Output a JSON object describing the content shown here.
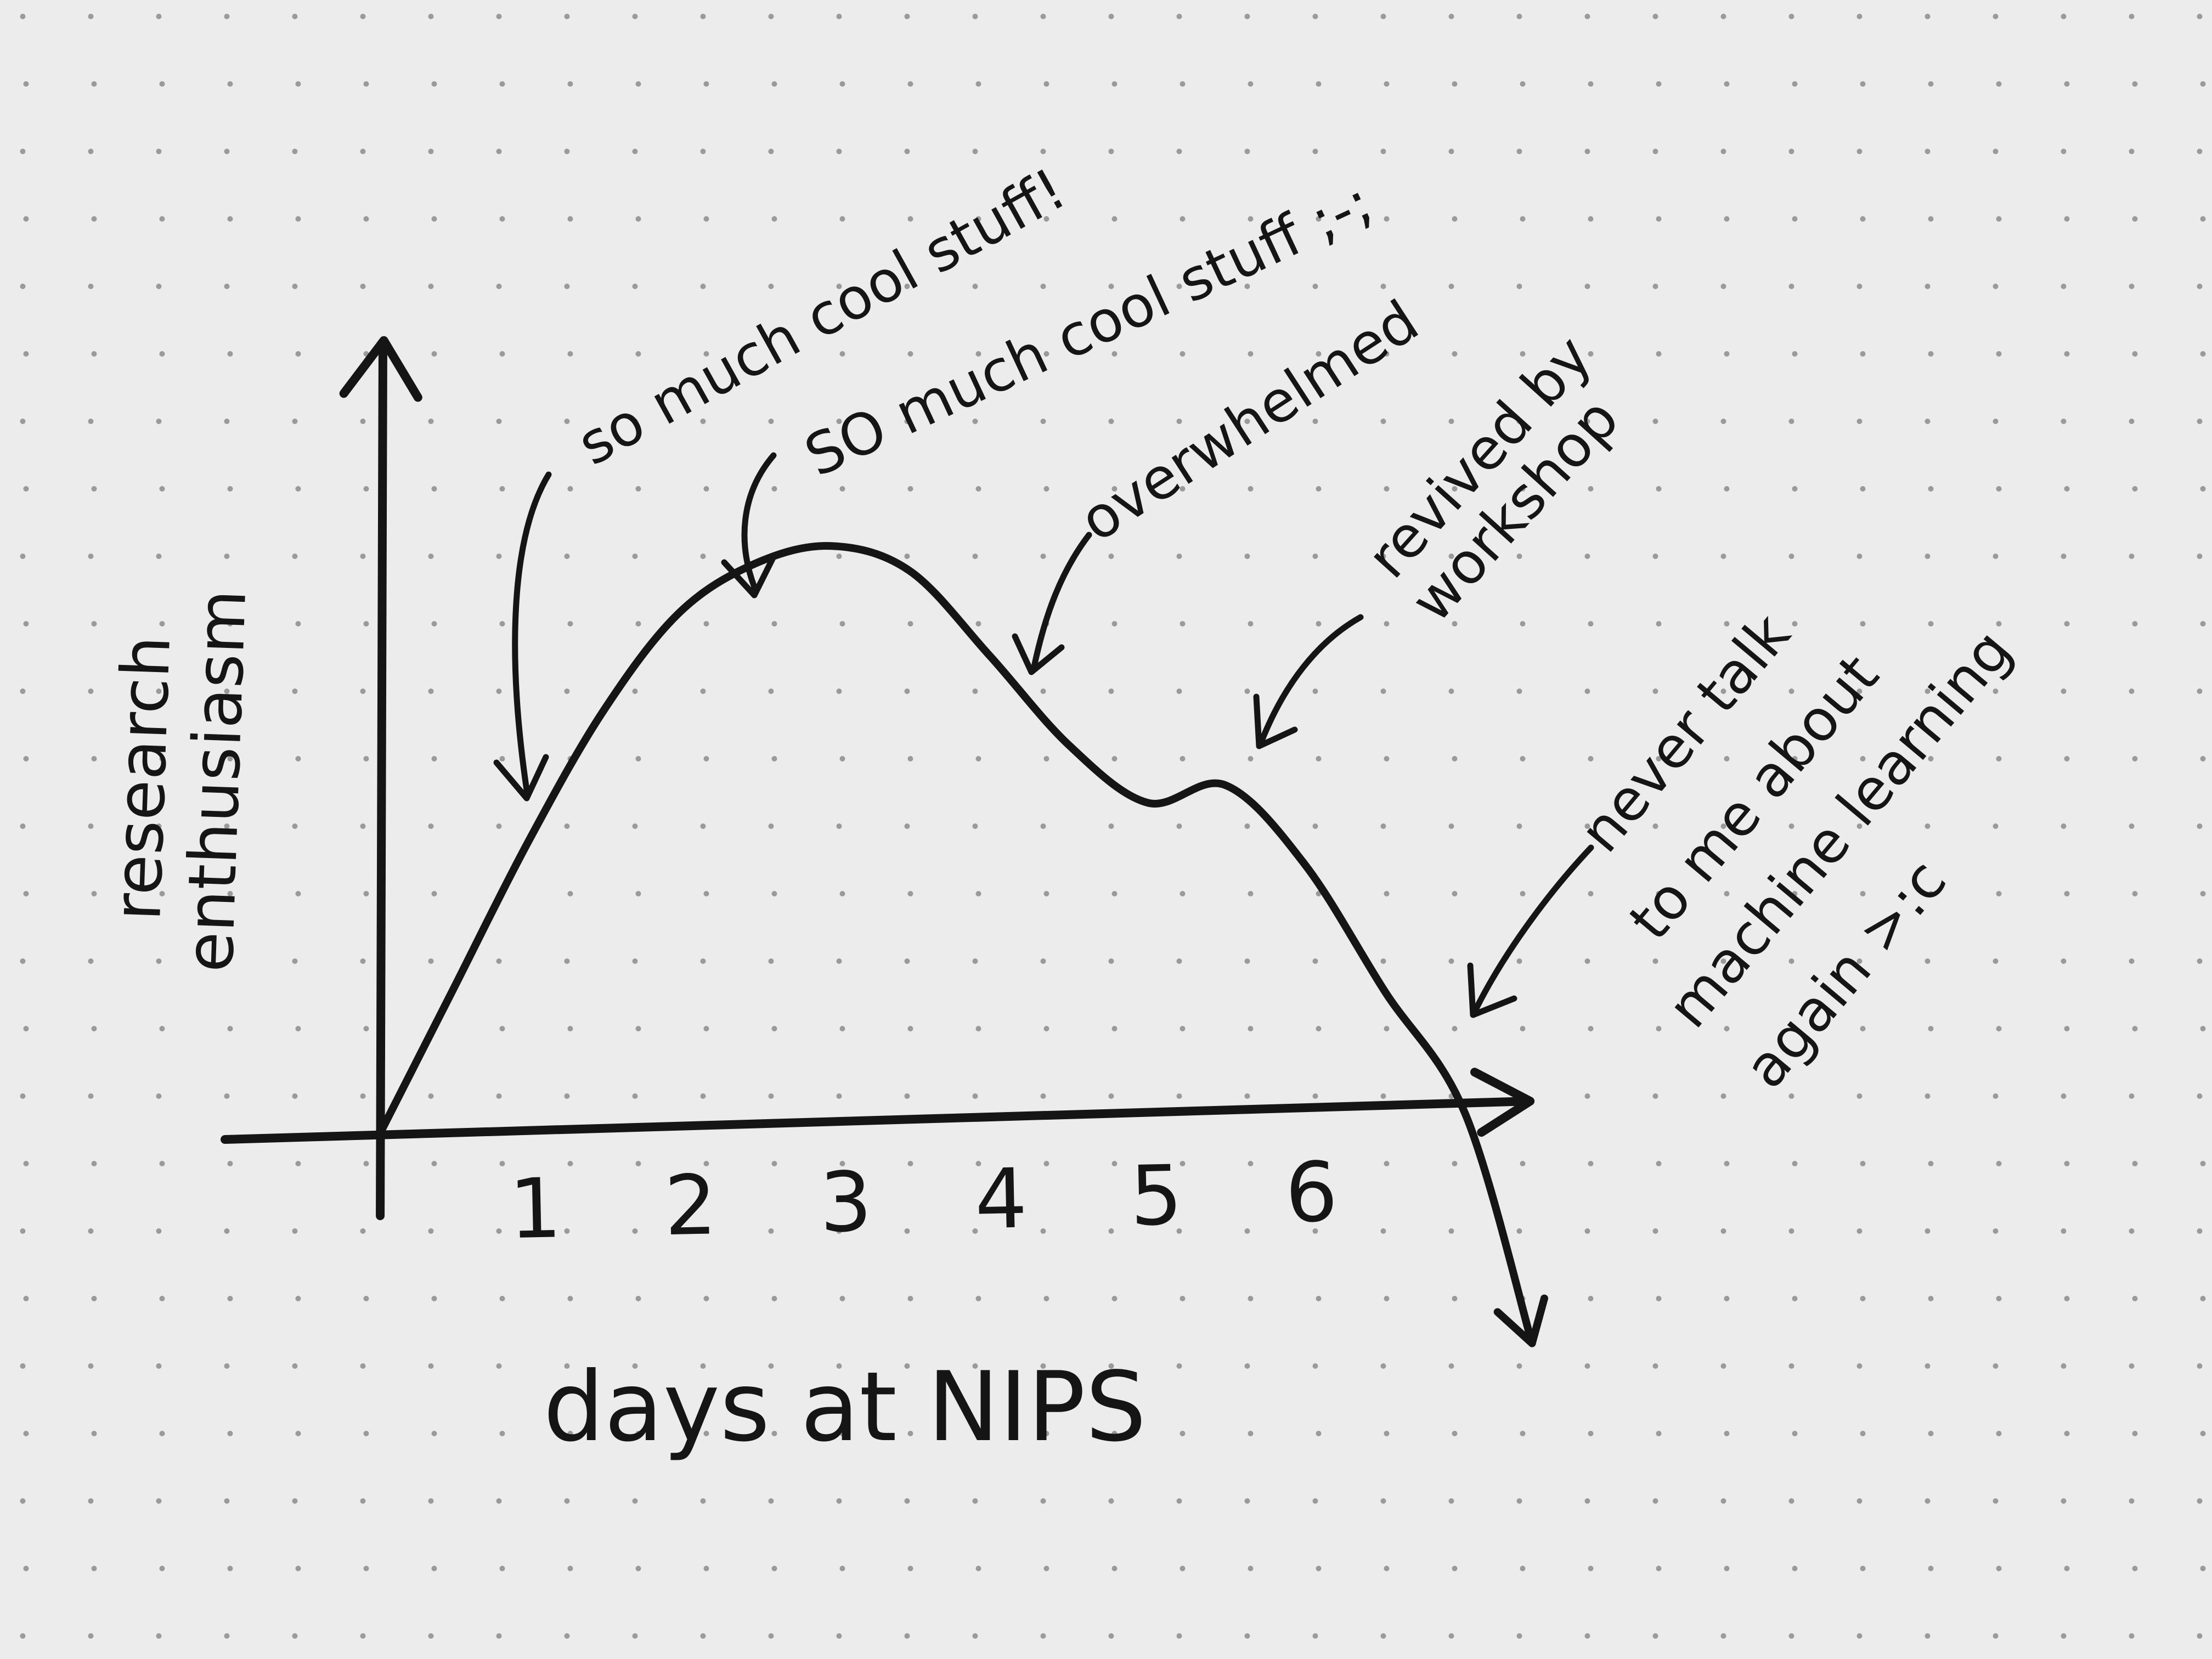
{
  "chart_data": {
    "type": "line",
    "title": "",
    "xlabel": "days at NIPS",
    "ylabel": [
      "research",
      "enthusiasm"
    ],
    "x_ticks": [
      "1",
      "2",
      "3",
      "4",
      "5",
      "6"
    ],
    "x": [
      0,
      0.5,
      1,
      1.5,
      2,
      2.5,
      3,
      3.5,
      4,
      4.5,
      5,
      5.5,
      6,
      6.5,
      7,
      7.4
    ],
    "values": [
      0,
      2.7,
      5.4,
      7.8,
      9.6,
      10.5,
      10.8,
      10.3,
      8.7,
      7.0,
      5.9,
      6.2,
      4.7,
      2.3,
      0,
      -4.3
    ],
    "xlim": [
      0,
      7.4
    ],
    "ylim": [
      -4.5,
      16
    ],
    "grid": "dotted",
    "legend": "none",
    "annotations": [
      {
        "id": "a1",
        "lines": [
          "so much cool stuff!"
        ],
        "x": 1,
        "y": 7.3
      },
      {
        "id": "a2",
        "lines": [
          "SO much cool stuff ;-;"
        ],
        "x": 2.4,
        "y": 10.1
      },
      {
        "id": "a3",
        "lines": [
          "overwhelmed"
        ],
        "x": 4.1,
        "y": 8.5
      },
      {
        "id": "a4",
        "lines": [
          "revived by",
          "workshop"
        ],
        "x": 5.6,
        "y": 7.7
      },
      {
        "id": "a5",
        "lines": [
          "never talk",
          "to me about",
          "machine learning",
          "again >:c"
        ],
        "x": 6.7,
        "y": 2.3
      }
    ],
    "colors": {
      "ink": "#151515",
      "paper": "#ececec",
      "dots": "#9a9a9a"
    }
  }
}
